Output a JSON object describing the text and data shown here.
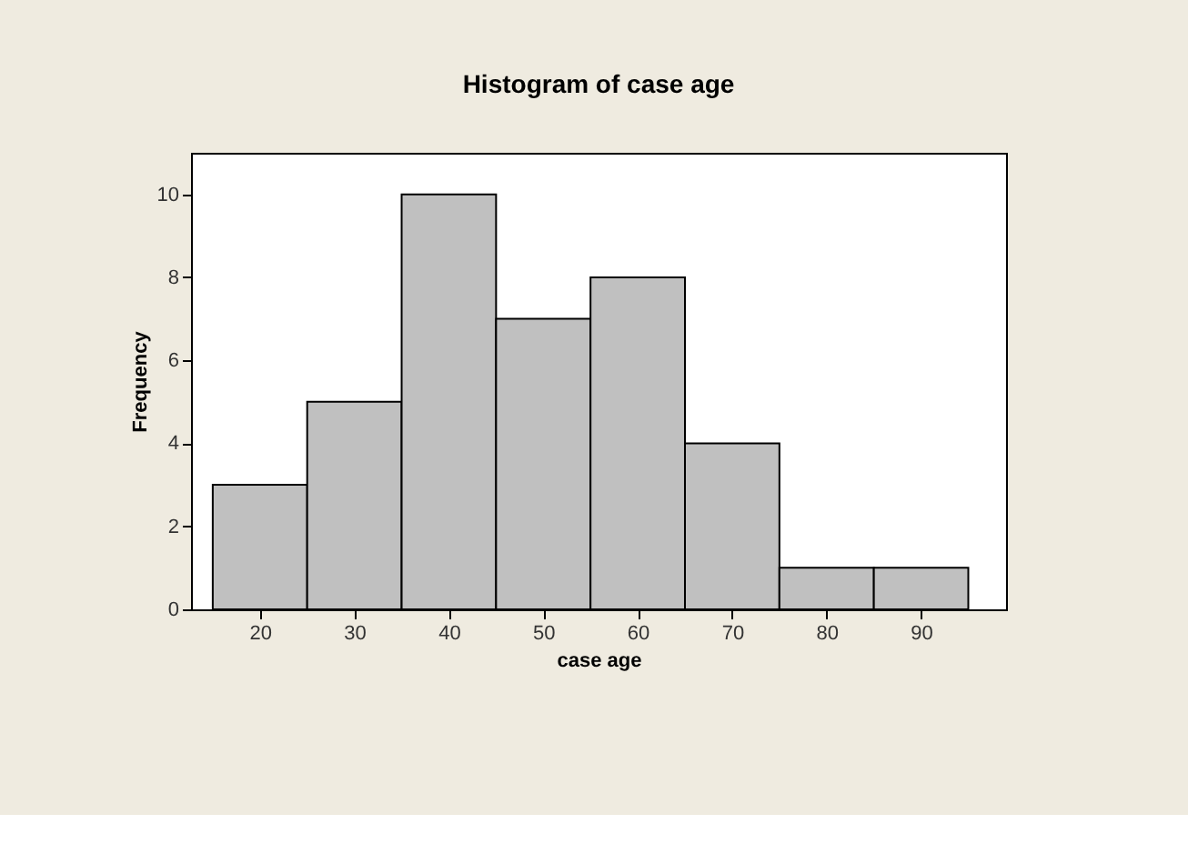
{
  "chart_data": {
    "type": "histogram",
    "title": "Histogram of case age",
    "xlabel": "case age",
    "ylabel": "Frequency",
    "bins": [
      15,
      25,
      35,
      45,
      55,
      65,
      75,
      85,
      95
    ],
    "values": [
      3,
      5,
      10,
      7,
      8,
      4,
      1,
      1
    ],
    "color": "#c0c0c0",
    "xlim": [
      12.7,
      99
    ],
    "ylim": [
      0,
      11
    ],
    "xticks": [
      20,
      30,
      40,
      50,
      60,
      70,
      80,
      90
    ],
    "yticks": [
      0,
      2,
      4,
      6,
      8,
      10
    ],
    "grid": false
  }
}
